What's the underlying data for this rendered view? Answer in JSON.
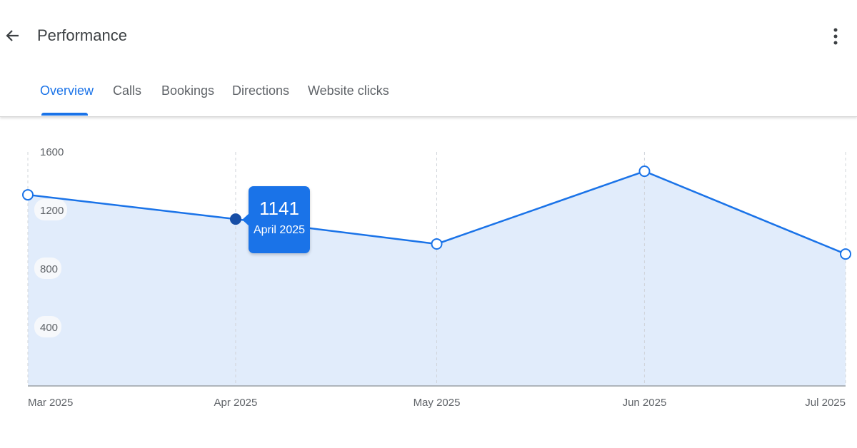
{
  "header": {
    "title": "Performance",
    "back_icon": "arrow-left-icon",
    "menu_icon": "more-vertical-icon"
  },
  "tabs": [
    {
      "label": "Overview",
      "active": true
    },
    {
      "label": "Calls"
    },
    {
      "label": "Bookings"
    },
    {
      "label": "Directions"
    },
    {
      "label": "Website clicks"
    }
  ],
  "colors": {
    "accent": "#1a73e8",
    "fill": "#e1ecfb",
    "selected_point": "#174ea6"
  },
  "chart_data": {
    "type": "area",
    "x": [
      "2025-03-01",
      "2025-04-01",
      "2025-05-01",
      "2025-06-01",
      "2025-07-01"
    ],
    "x_tick_labels": [
      "Mar 2025",
      "Apr 2025",
      "May 2025",
      "Jun 2025",
      "Jul 2025"
    ],
    "values": [
      1307,
      1141,
      971,
      1468,
      902
    ],
    "y_ticks": [
      400,
      800,
      1200,
      1600
    ],
    "ylim": [
      0,
      1600
    ],
    "grid": "vertical dashed",
    "tooltip": {
      "value": "1141",
      "label": "April 2025",
      "index": 1
    }
  }
}
